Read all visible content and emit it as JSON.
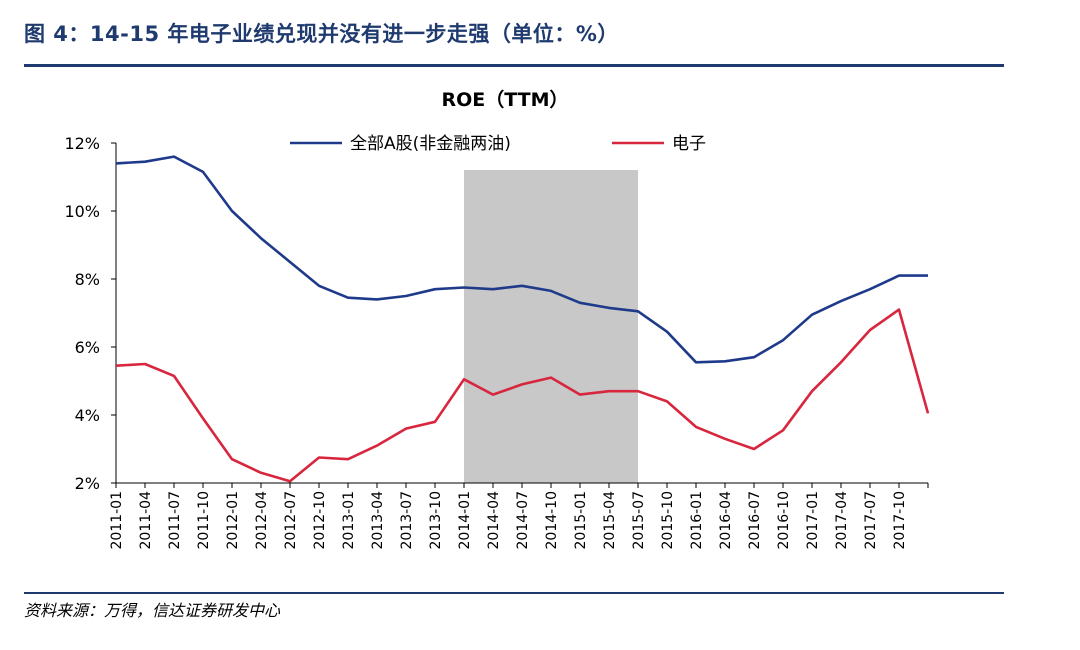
{
  "figure": {
    "title": "图 4：14-15 年电子业绩兑现并没有进一步走强（单位：%）",
    "source": "资料来源：万得，信达证券研发中心"
  },
  "chart_data": {
    "type": "line",
    "title": "ROE（TTM）",
    "xlabel": "",
    "ylabel": "",
    "ylim": [
      2,
      12
    ],
    "y_ticks": [
      "2%",
      "4%",
      "6%",
      "8%",
      "10%",
      "12%"
    ],
    "x_tick_labels": [
      "2011-01",
      "2011-04",
      "2011-07",
      "2011-10",
      "2012-01",
      "2012-04",
      "2012-07",
      "2012-10",
      "2013-01",
      "2013-04",
      "2013-07",
      "2013-10",
      "2014-01",
      "2014-04",
      "2014-07",
      "2014-10",
      "2015-01",
      "2015-04",
      "2015-07",
      "2015-10",
      "2016-01",
      "2016-04",
      "2016-07",
      "2016-10",
      "2017-01",
      "2017-04",
      "2017-07",
      "2017-10"
    ],
    "x": [
      "2011-01",
      "2011-04",
      "2011-07",
      "2011-10",
      "2012-01",
      "2012-04",
      "2012-07",
      "2012-10",
      "2013-01",
      "2013-04",
      "2013-07",
      "2013-10",
      "2014-01",
      "2014-04",
      "2014-07",
      "2014-10",
      "2015-01",
      "2015-04",
      "2015-07",
      "2015-10",
      "2016-01",
      "2016-04",
      "2016-07",
      "2016-10",
      "2017-01",
      "2017-04",
      "2017-07",
      "2017-10",
      "2018-01"
    ],
    "series": [
      {
        "name": "全部A股(非金融两油)",
        "color": "#1f3a8a",
        "values": [
          11.4,
          11.45,
          11.6,
          11.15,
          10.0,
          9.2,
          8.5,
          7.8,
          7.45,
          7.4,
          7.5,
          7.7,
          7.75,
          7.7,
          7.8,
          7.65,
          7.3,
          7.15,
          7.05,
          6.45,
          5.55,
          5.58,
          5.7,
          6.2,
          6.95,
          7.35,
          7.7,
          8.1,
          8.1
        ]
      },
      {
        "name": "电子",
        "color": "#d7263d",
        "values": [
          5.45,
          5.5,
          5.15,
          3.9,
          2.7,
          2.3,
          2.05,
          2.75,
          2.7,
          3.1,
          3.6,
          3.8,
          5.05,
          4.6,
          4.9,
          5.1,
          4.6,
          4.7,
          4.7,
          4.4,
          3.65,
          3.3,
          3.0,
          3.55,
          4.7,
          5.55,
          6.5,
          7.1,
          4.05
        ]
      }
    ],
    "shaded_region": {
      "from": "2014-01",
      "to": "2015-07",
      "color": "#c8c8c8"
    },
    "legend_position": "top",
    "grid": false
  }
}
